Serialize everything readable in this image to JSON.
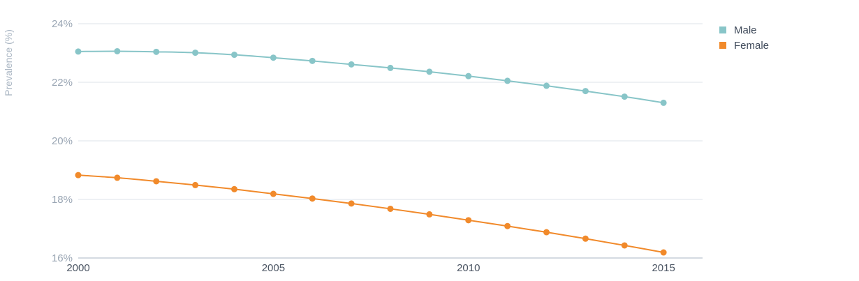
{
  "chart_data": {
    "type": "line",
    "title": "",
    "xlabel": "",
    "ylabel": "Prevalence (%)",
    "x": [
      2000,
      2001,
      2002,
      2003,
      2004,
      2005,
      2006,
      2007,
      2008,
      2009,
      2010,
      2011,
      2012,
      2013,
      2014,
      2015
    ],
    "x_ticks": [
      "2000",
      "2005",
      "2010",
      "2015"
    ],
    "xlim": [
      2000,
      2016
    ],
    "ylim": [
      16,
      24
    ],
    "y_ticks": [
      "16%",
      "18%",
      "20%",
      "22%",
      "24%"
    ],
    "grid": true,
    "legend": "top-right",
    "series": [
      {
        "name": "Male",
        "color": "#88c5c8",
        "values": [
          23.05,
          23.06,
          23.04,
          23.01,
          22.94,
          22.84,
          22.73,
          22.61,
          22.49,
          22.36,
          22.21,
          22.05,
          21.88,
          21.7,
          21.51,
          21.3
        ]
      },
      {
        "name": "Female",
        "color": "#f18a2b",
        "values": [
          18.83,
          18.74,
          18.62,
          18.49,
          18.35,
          18.19,
          18.03,
          17.86,
          17.68,
          17.49,
          17.29,
          17.09,
          16.88,
          16.66,
          16.43,
          16.19
        ]
      }
    ]
  }
}
